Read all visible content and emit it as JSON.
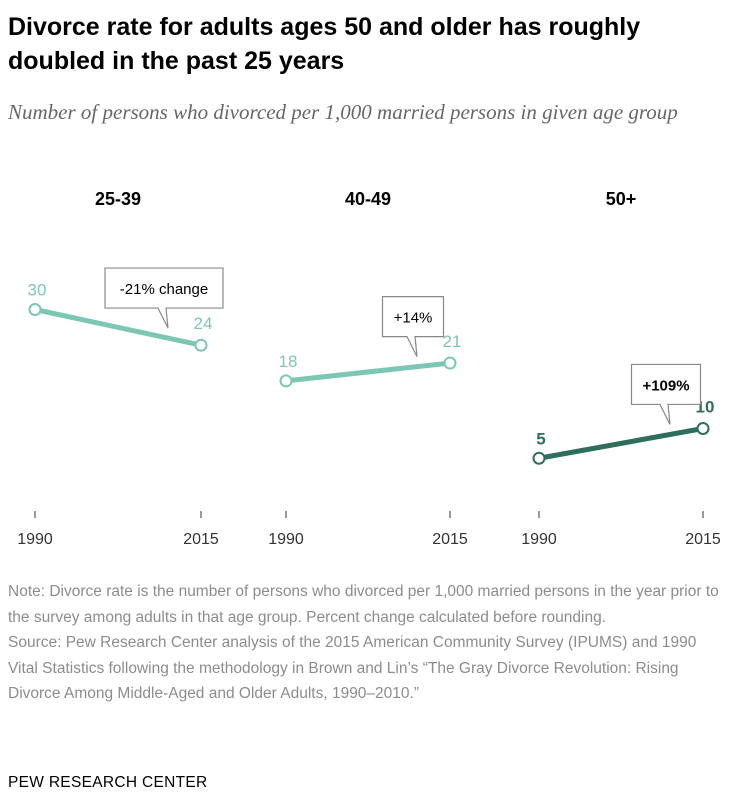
{
  "title": "Divorce rate for adults ages 50 and older has roughly doubled in the past 25 years",
  "subtitle": "Number of persons who divorced per 1,000 married persons in given age group",
  "note": "Note: Divorce rate is the number of persons who divorced per 1,000 married persons in the year prior to the survey among adults in that age group. Percent change calculated before rounding.",
  "source": "Source: Pew Research Center analysis of the 2015 American Community Survey (IPUMS) and 1990 Vital Statistics following the methodology in Brown and Lin’s “The Gray Divorce Revolution: Rising Divorce Among Middle-Aged and Older Adults, 1990–2010.”",
  "footer": "PEW RESEARCH CENTER",
  "colors": {
    "light_series": "#7cc6b4",
    "dark_series": "#2e6e5e",
    "axis": "#333333",
    "muted_text": "#8c8c8c"
  },
  "chart_data": [
    {
      "type": "line",
      "title": "25-39",
      "x": [
        "1990",
        "2015"
      ],
      "values": [
        30,
        24
      ],
      "annotation": "-21% change",
      "annotation_bold": false,
      "color": "#7cc6b4",
      "ylim": [
        0,
        35
      ]
    },
    {
      "type": "line",
      "title": "40-49",
      "x": [
        "1990",
        "2015"
      ],
      "values": [
        18,
        21
      ],
      "annotation": "+14%",
      "annotation_bold": false,
      "color": "#7cc6b4",
      "ylim": [
        0,
        35
      ]
    },
    {
      "type": "line",
      "title": "50+",
      "x": [
        "1990",
        "2015"
      ],
      "values": [
        5,
        10
      ],
      "annotation": "+109%",
      "annotation_bold": true,
      "color": "#2e6e5e",
      "ylim": [
        0,
        35
      ]
    }
  ]
}
